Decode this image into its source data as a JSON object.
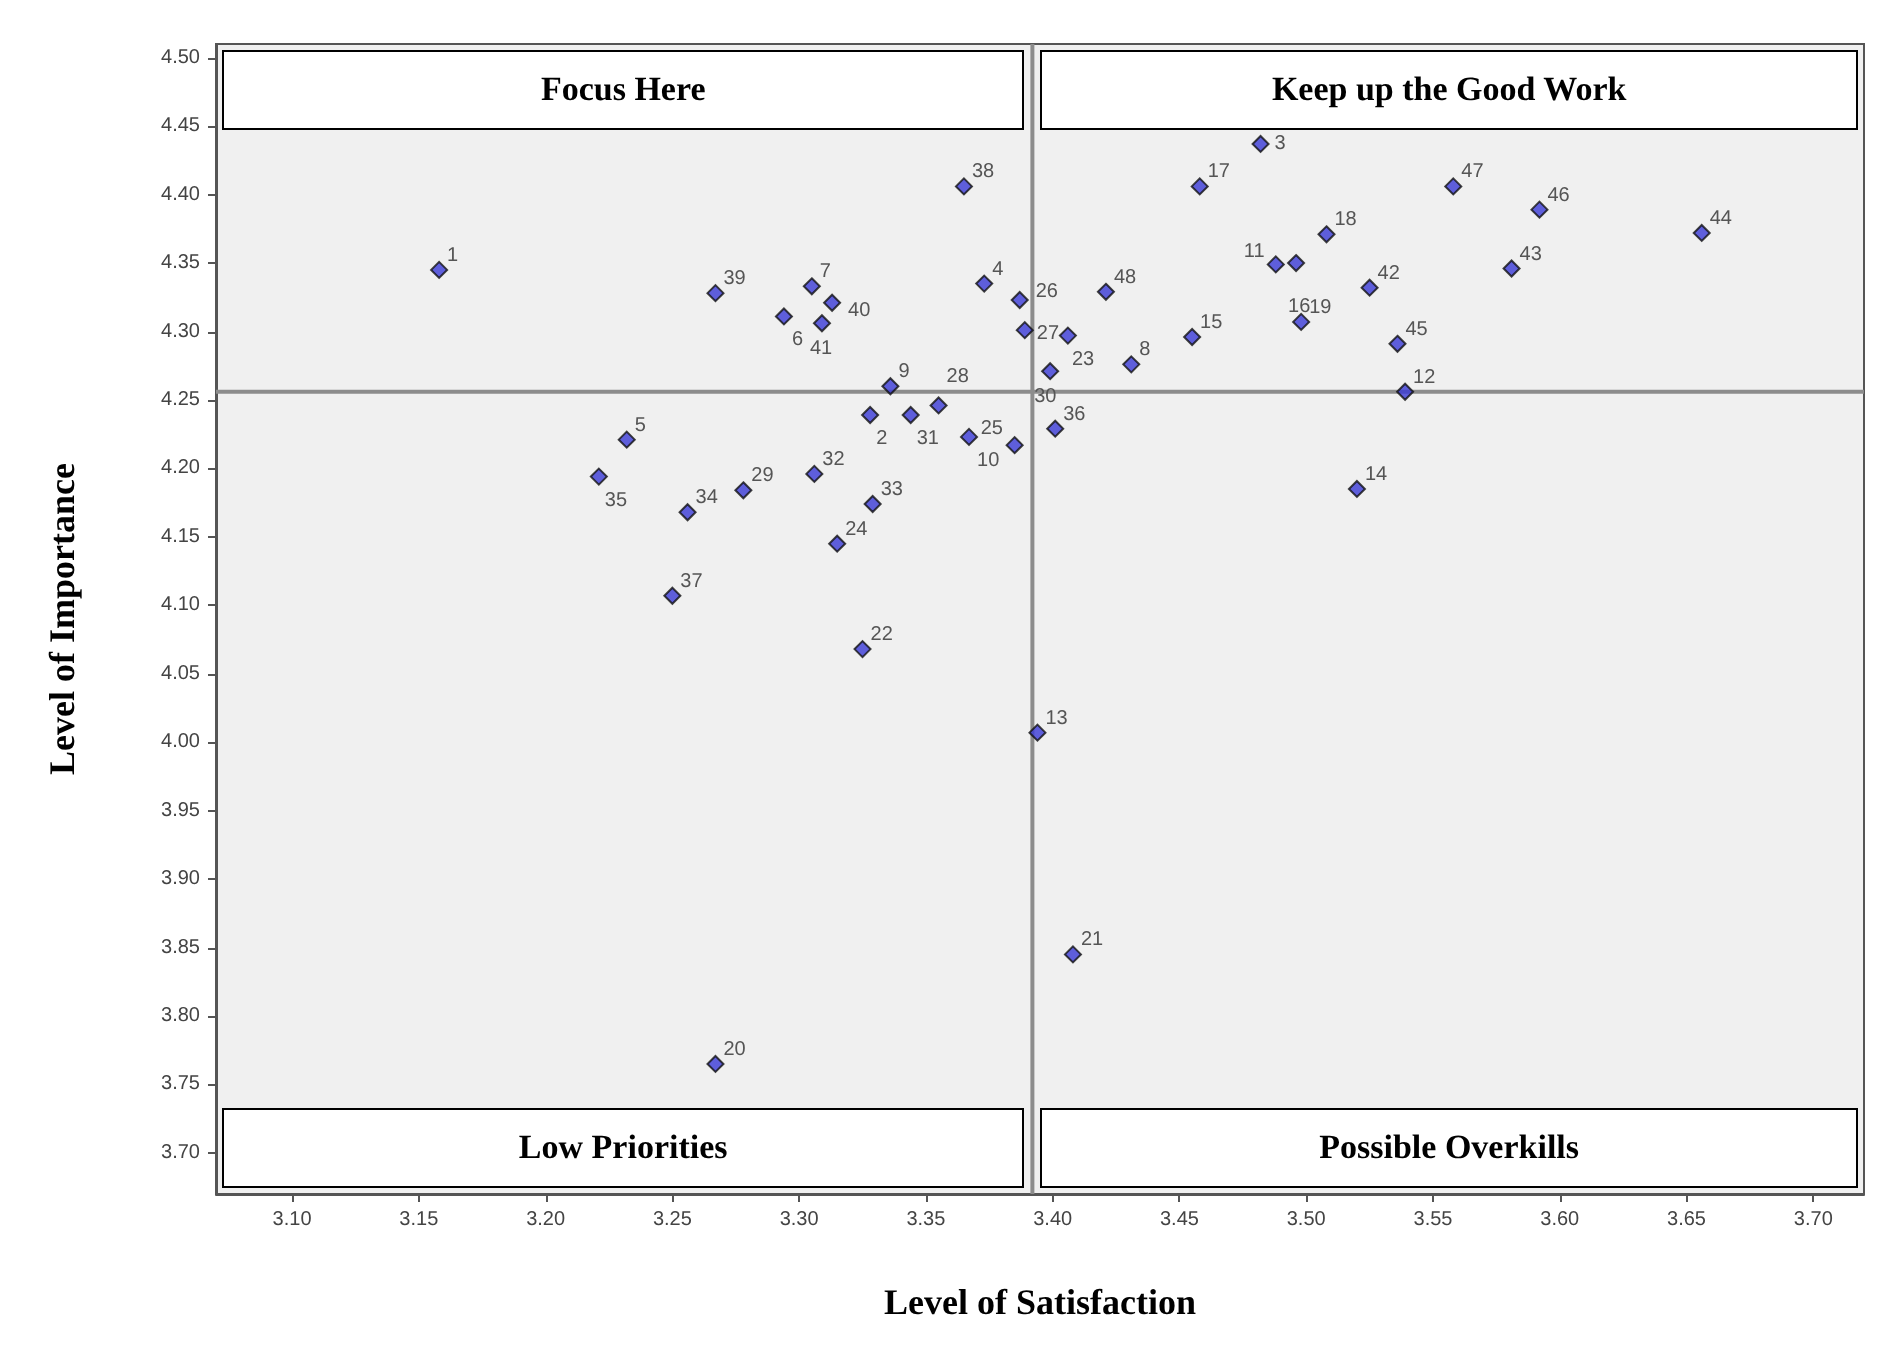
{
  "chart_data": {
    "type": "scatter",
    "xlabel": "Level of Satisfaction",
    "ylabel": "Level of Importance",
    "annotations": [
      "Focus Here",
      "Keep up the Good Work",
      "Low Priorities",
      "Possible Overkills",
      {
        "text": "1",
        "x": 3.158,
        "y": 4.345
      },
      {
        "text": "2",
        "x": 3.328,
        "y": 4.239
      },
      {
        "text": "3",
        "x": 3.482,
        "y": 4.437
      },
      {
        "text": "4",
        "x": 3.373,
        "y": 4.335
      },
      {
        "text": "5",
        "x": 3.232,
        "y": 4.221
      },
      {
        "text": "6",
        "x": 3.294,
        "y": 4.311
      },
      {
        "text": "7",
        "x": 3.305,
        "y": 4.333
      },
      {
        "text": "8",
        "x": 3.431,
        "y": 4.276
      },
      {
        "text": "9",
        "x": 3.336,
        "y": 4.26
      },
      {
        "text": "10",
        "x": 3.367,
        "y": 4.223
      },
      {
        "text": "11",
        "x": 3.488,
        "y": 4.349
      },
      {
        "text": "12",
        "x": 3.539,
        "y": 4.256
      },
      {
        "text": "13",
        "x": 3.394,
        "y": 4.007
      },
      {
        "text": "14",
        "x": 3.52,
        "y": 4.185
      },
      {
        "text": "15",
        "x": 3.455,
        "y": 4.296
      },
      {
        "text": "16",
        "x": 3.496,
        "y": 4.35
      },
      {
        "text": "17",
        "x": 3.458,
        "y": 4.406
      },
      {
        "text": "18",
        "x": 3.508,
        "y": 4.371
      },
      {
        "text": "19",
        "x": 3.498,
        "y": 4.307
      },
      {
        "text": "20",
        "x": 3.267,
        "y": 3.765
      },
      {
        "text": "21",
        "x": 3.408,
        "y": 3.845
      },
      {
        "text": "22",
        "x": 3.325,
        "y": 4.068
      },
      {
        "text": "23",
        "x": 3.406,
        "y": 4.297
      },
      {
        "text": "24",
        "x": 3.315,
        "y": 4.145
      },
      {
        "text": "25",
        "x": 3.385,
        "y": 4.217
      },
      {
        "text": "26",
        "x": 3.387,
        "y": 4.323
      },
      {
        "text": "27",
        "x": 3.389,
        "y": 4.301
      },
      {
        "text": "28",
        "x": 3.355,
        "y": 4.246
      },
      {
        "text": "29",
        "x": 3.278,
        "y": 4.184
      },
      {
        "text": "30",
        "x": 3.399,
        "y": 4.271
      },
      {
        "text": "31",
        "x": 3.344,
        "y": 4.239
      },
      {
        "text": "32",
        "x": 3.306,
        "y": 4.196
      },
      {
        "text": "33",
        "x": 3.329,
        "y": 4.174
      },
      {
        "text": "34",
        "x": 3.256,
        "y": 4.168
      },
      {
        "text": "35",
        "x": 3.221,
        "y": 4.194
      },
      {
        "text": "36",
        "x": 3.401,
        "y": 4.229
      },
      {
        "text": "37",
        "x": 3.25,
        "y": 4.107
      },
      {
        "text": "38",
        "x": 3.365,
        "y": 4.406
      },
      {
        "text": "39",
        "x": 3.267,
        "y": 4.328
      },
      {
        "text": "40",
        "x": 3.313,
        "y": 4.321
      },
      {
        "text": "41",
        "x": 3.309,
        "y": 4.306
      },
      {
        "text": "42",
        "x": 3.525,
        "y": 4.332
      },
      {
        "text": "43",
        "x": 3.581,
        "y": 4.346
      },
      {
        "text": "44",
        "x": 3.656,
        "y": 4.372
      },
      {
        "text": "45",
        "x": 3.536,
        "y": 4.291
      },
      {
        "text": "46",
        "x": 3.592,
        "y": 4.389
      },
      {
        "text": "47",
        "x": 3.558,
        "y": 4.406
      },
      {
        "text": "48",
        "x": 3.421,
        "y": 4.329
      }
    ],
    "x": [
      3.158,
      3.328,
      3.482,
      3.373,
      3.232,
      3.294,
      3.305,
      3.431,
      3.336,
      3.367,
      3.488,
      3.539,
      3.394,
      3.52,
      3.455,
      3.496,
      3.458,
      3.508,
      3.498,
      3.267,
      3.408,
      3.325,
      3.406,
      3.315,
      3.385,
      3.387,
      3.389,
      3.355,
      3.278,
      3.399,
      3.344,
      3.306,
      3.329,
      3.256,
      3.221,
      3.401,
      3.25,
      3.365,
      3.267,
      3.313,
      3.309,
      3.525,
      3.581,
      3.656,
      3.536,
      3.592,
      3.558,
      3.421
    ],
    "values": [
      4.345,
      4.239,
      4.437,
      4.335,
      4.221,
      4.311,
      4.333,
      4.276,
      4.26,
      4.223,
      4.349,
      4.256,
      4.007,
      4.185,
      4.296,
      4.35,
      4.406,
      4.371,
      4.307,
      3.765,
      3.845,
      4.068,
      4.297,
      4.145,
      4.217,
      4.323,
      4.301,
      4.246,
      4.184,
      4.271,
      4.239,
      4.196,
      4.174,
      4.168,
      4.194,
      4.229,
      4.107,
      4.406,
      4.328,
      4.321,
      4.306,
      4.332,
      4.346,
      4.372,
      4.291,
      4.389,
      4.406,
      4.329
    ],
    "color": "#3a3ad6",
    "marker": "diamond",
    "grid": false,
    "xlim": [
      3.07,
      3.72
    ],
    "ylim": [
      3.67,
      4.51
    ],
    "xticks": [
      {
        "value": 3.1,
        "label": "3.10"
      },
      {
        "value": 3.15,
        "label": "3.15"
      },
      {
        "value": 3.2,
        "label": "3.20"
      },
      {
        "value": 3.25,
        "label": "3.25"
      },
      {
        "value": 3.3,
        "label": "3.30"
      },
      {
        "value": 3.35,
        "label": "3.35"
      },
      {
        "value": 3.4,
        "label": "3.40"
      },
      {
        "value": 3.45,
        "label": "3.45"
      },
      {
        "value": 3.5,
        "label": "3.50"
      },
      {
        "value": 3.55,
        "label": "3.55"
      },
      {
        "value": 3.6,
        "label": "3.60"
      },
      {
        "value": 3.65,
        "label": "3.65"
      },
      {
        "value": 3.7,
        "label": "3.70"
      }
    ],
    "yticks": [
      {
        "value": 3.7,
        "label": "3.70"
      },
      {
        "value": 3.75,
        "label": "3.75"
      },
      {
        "value": 3.8,
        "label": "3.80"
      },
      {
        "value": 3.85,
        "label": "3.85"
      },
      {
        "value": 3.9,
        "label": "3.90"
      },
      {
        "value": 3.95,
        "label": "3.95"
      },
      {
        "value": 4.0,
        "label": "4.00"
      },
      {
        "value": 4.05,
        "label": "4.05"
      },
      {
        "value": 4.1,
        "label": "4.10"
      },
      {
        "value": 4.15,
        "label": "4.15"
      },
      {
        "value": 4.2,
        "label": "4.20"
      },
      {
        "value": 4.25,
        "label": "4.25"
      },
      {
        "value": 4.3,
        "label": "4.30"
      },
      {
        "value": 4.35,
        "label": "4.35"
      },
      {
        "value": 4.4,
        "label": "4.40"
      },
      {
        "value": 4.45,
        "label": "4.45"
      },
      {
        "value": 4.5,
        "label": "4.50"
      }
    ],
    "ref_lines": [
      {
        "axis": "x",
        "value": 3.392,
        "color": "#8c8c8c"
      },
      {
        "axis": "y",
        "value": 4.256,
        "color": "#8c8c8c"
      }
    ]
  }
}
